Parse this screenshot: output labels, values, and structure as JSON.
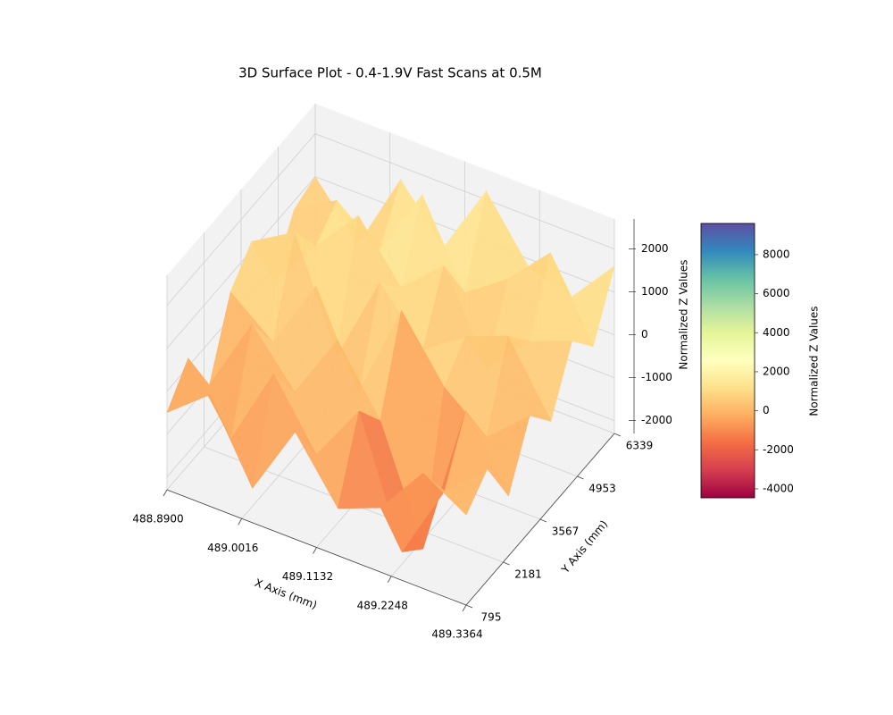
{
  "chart_data": {
    "type": "surface3d",
    "title": "3D Surface Plot - 0.4-1.9V Fast Scans at 0.5M",
    "xlabel": "X Axis (mm)",
    "ylabel": "Y Axis (mm)",
    "zlabel": "Normalized Z Values",
    "xlim": [
      488.89,
      489.3364
    ],
    "ylim": [
      795,
      6339
    ],
    "zlim": [
      -2300,
      2700
    ],
    "xticks": [
      {
        "value": 488.89,
        "label": "488.8900"
      },
      489.0016,
      489.1132,
      489.2248,
      489.3364
    ],
    "yticks": [
      795,
      2181,
      3567,
      4953,
      6339
    ],
    "zticks": [
      -2000,
      -1000,
      0,
      1000,
      2000
    ],
    "x": [
      488.89,
      488.9538,
      489.0175,
      489.0813,
      489.1451,
      489.2089,
      489.2726,
      489.3364
    ],
    "y": [
      795,
      1587,
      2379,
      3171,
      3963,
      4755,
      5547,
      6339
    ],
    "z": [
      [
        -500,
        300,
        -1500,
        200,
        -1200,
        -800,
        400,
        -200
      ],
      [
        200,
        -1300,
        600,
        -900,
        500,
        -2400,
        -600,
        300
      ],
      [
        -1000,
        800,
        -400,
        1200,
        -300,
        -2900,
        700,
        -900
      ],
      [
        600,
        -200,
        1500,
        -600,
        1700,
        300,
        -500,
        400
      ],
      [
        1200,
        1800,
        -700,
        1400,
        200,
        900,
        1300,
        -300
      ],
      [
        -300,
        900,
        2000,
        700,
        1600,
        -400,
        600,
        1000
      ],
      [
        800,
        1400,
        600,
        2300,
        400,
        1100,
        2100,
        300
      ],
      [
        1000,
        -200,
        1700,
        500,
        2200,
        800,
        500,
        1600
      ]
    ],
    "colorbar": {
      "label": "Normalized Z Values",
      "clim": [
        -4460,
        9600
      ],
      "ticks": [
        -4000,
        -2000,
        0,
        2000,
        4000,
        6000,
        8000
      ]
    },
    "colormap": [
      "#9e0142",
      "#d53e4f",
      "#f46d43",
      "#fdae61",
      "#fee08b",
      "#ffffbf",
      "#e6f598",
      "#abdda4",
      "#66c2a5",
      "#3288bd",
      "#5e4fa2"
    ],
    "grid": true
  }
}
